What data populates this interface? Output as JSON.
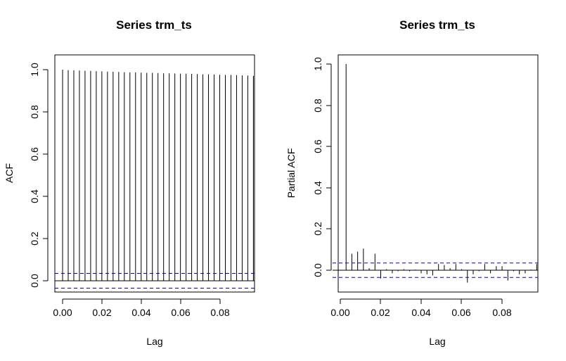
{
  "chart_data": [
    {
      "type": "bar",
      "title": "Series  trm_ts",
      "xlabel": "Lag",
      "ylabel": "ACF",
      "xlim": [
        0,
        0.095
      ],
      "ylim": [
        -0.05,
        1.0
      ],
      "x_ticks": [
        "0.00",
        "0.02",
        "0.04",
        "0.06",
        "0.08"
      ],
      "y_ticks": [
        "0.0",
        "0.2",
        "0.4",
        "0.6",
        "0.8",
        "1.0"
      ],
      "zero_line": true,
      "confidence_bound": 0.035,
      "colors": {
        "bars": "#000000",
        "confidence": "#0000cc"
      },
      "x": [
        0.0,
        0.00278,
        0.00556,
        0.00833,
        0.01111,
        0.01389,
        0.01667,
        0.01944,
        0.02222,
        0.025,
        0.02778,
        0.03056,
        0.03333,
        0.03611,
        0.03889,
        0.04167,
        0.04444,
        0.04722,
        0.05,
        0.05278,
        0.05556,
        0.05833,
        0.06111,
        0.06389,
        0.06667,
        0.06944,
        0.07222,
        0.075,
        0.07778,
        0.08056,
        0.08333,
        0.08611,
        0.08889,
        0.09167,
        0.09444
      ],
      "values": [
        1.0,
        0.998,
        0.997,
        0.996,
        0.995,
        0.994,
        0.993,
        0.992,
        0.991,
        0.99,
        0.989,
        0.988,
        0.987,
        0.987,
        0.986,
        0.985,
        0.985,
        0.984,
        0.983,
        0.983,
        0.982,
        0.981,
        0.981,
        0.98,
        0.979,
        0.978,
        0.978,
        0.977,
        0.976,
        0.975,
        0.975,
        0.974,
        0.973,
        0.972,
        0.971
      ]
    },
    {
      "type": "bar",
      "title": "Series  trm_ts",
      "xlabel": "Lag",
      "ylabel": "Partial ACF",
      "xlim": [
        0,
        0.095
      ],
      "ylim": [
        -0.1,
        1.0
      ],
      "x_ticks": [
        "0.00",
        "0.02",
        "0.04",
        "0.06",
        "0.08"
      ],
      "y_ticks": [
        "0.0",
        "0.2",
        "0.4",
        "0.6",
        "0.8",
        "1.0"
      ],
      "zero_line": true,
      "confidence_bound": 0.035,
      "colors": {
        "bars": "#000000",
        "confidence": "#0000cc"
      },
      "x": [
        0.00278,
        0.00556,
        0.00833,
        0.01111,
        0.01389,
        0.01667,
        0.01944,
        0.02222,
        0.025,
        0.02778,
        0.03056,
        0.03333,
        0.03611,
        0.03889,
        0.04167,
        0.04444,
        0.04722,
        0.05,
        0.05278,
        0.05556,
        0.05833,
        0.06111,
        0.06389,
        0.06667,
        0.06944,
        0.07222,
        0.075,
        0.07778,
        0.08056,
        0.08333,
        0.08611,
        0.08889,
        0.09167,
        0.09444
      ],
      "values": [
        1.0,
        0.08,
        0.09,
        0.105,
        0.01,
        0.08,
        -0.04,
        0.005,
        -0.015,
        -0.005,
        0.005,
        -0.005,
        0.003,
        -0.015,
        -0.02,
        -0.025,
        0.03,
        0.025,
        0.01,
        0.03,
        0.005,
        -0.06,
        -0.02,
        -0.005,
        0.03,
        -0.015,
        0.02,
        0.02,
        -0.05,
        -0.005,
        -0.02,
        -0.015,
        0.003,
        0.03
      ]
    }
  ]
}
